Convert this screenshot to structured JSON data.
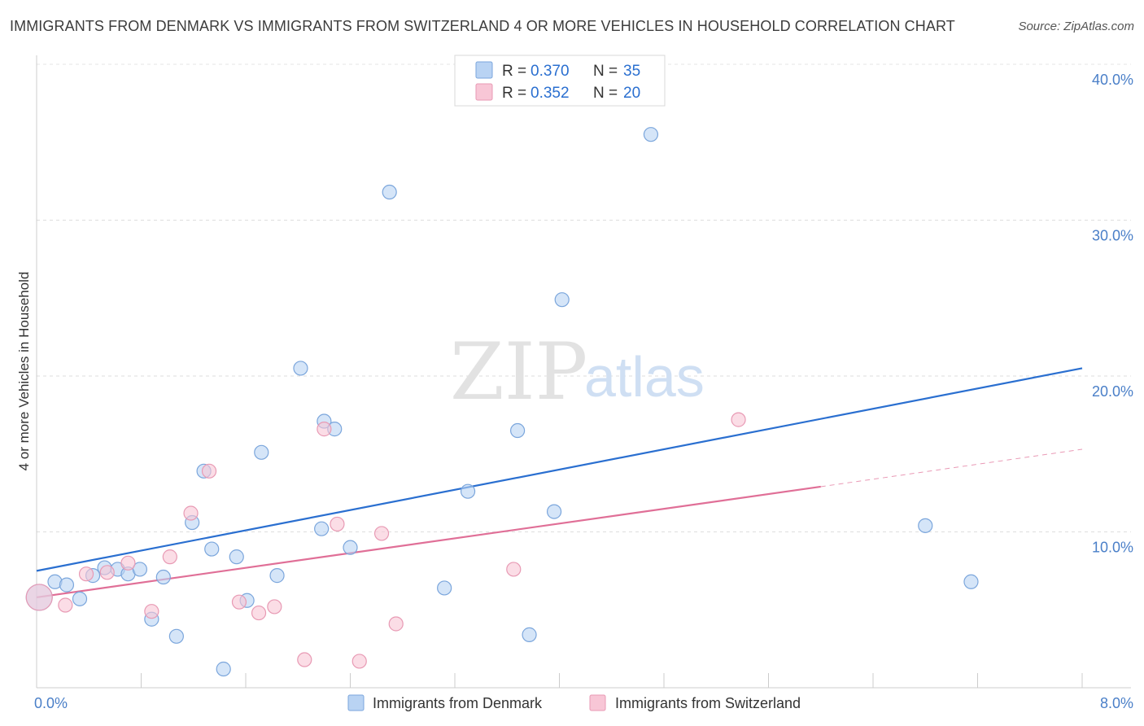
{
  "title": "IMMIGRANTS FROM DENMARK VS IMMIGRANTS FROM SWITZERLAND 4 OR MORE VEHICLES IN HOUSEHOLD CORRELATION CHART",
  "source": "Source: ZipAtlas.com",
  "watermark": {
    "zip": "ZIP",
    "atlas": "atlas"
  },
  "colors": {
    "denmark_fill": "#b9d3f3",
    "denmark_stroke": "#7ba6dc",
    "denmark_line": "#2a6fd0",
    "switzerland_fill": "#f8c6d6",
    "switzerland_stroke": "#e89ab4",
    "switzerland_line": "#e06f97",
    "accent_text": "#2a6fd0"
  },
  "legend": {
    "r_label": "R =",
    "n_label": "N =",
    "rows": [
      {
        "r": "0.370",
        "n": "35"
      },
      {
        "r": "0.352",
        "n": "20"
      }
    ]
  },
  "chart_data": {
    "type": "scatter",
    "ylabel": "4 or more Vehicles in Household",
    "xlim": [
      0,
      8
    ],
    "ylim": [
      0,
      40
    ],
    "x_tick_labels": [
      "0.0%",
      "8.0%"
    ],
    "y_tick_labels": [
      "10.0%",
      "20.0%",
      "30.0%",
      "40.0%"
    ],
    "grid": true,
    "legend_position": "top-center",
    "series": [
      {
        "name": "Immigrants from Denmark",
        "r": 0.37,
        "n": 35,
        "points": [
          [
            0.02,
            5.8
          ],
          [
            0.14,
            6.8
          ],
          [
            0.23,
            6.6
          ],
          [
            0.33,
            5.7
          ],
          [
            0.43,
            7.2
          ],
          [
            0.52,
            7.7
          ],
          [
            0.62,
            7.6
          ],
          [
            0.7,
            7.3
          ],
          [
            0.79,
            7.6
          ],
          [
            0.88,
            4.4
          ],
          [
            0.97,
            7.1
          ],
          [
            1.07,
            3.3
          ],
          [
            1.19,
            10.6
          ],
          [
            1.28,
            13.9
          ],
          [
            1.34,
            8.9
          ],
          [
            1.43,
            1.2
          ],
          [
            1.53,
            8.4
          ],
          [
            1.61,
            5.6
          ],
          [
            1.72,
            15.1
          ],
          [
            1.84,
            7.2
          ],
          [
            2.02,
            20.5
          ],
          [
            2.18,
            10.2
          ],
          [
            2.2,
            17.1
          ],
          [
            2.28,
            16.6
          ],
          [
            2.4,
            9.0
          ],
          [
            2.7,
            31.8
          ],
          [
            3.12,
            6.4
          ],
          [
            3.3,
            12.6
          ],
          [
            3.68,
            16.5
          ],
          [
            3.77,
            3.4
          ],
          [
            3.96,
            11.3
          ],
          [
            4.02,
            24.9
          ],
          [
            4.7,
            35.5
          ],
          [
            6.8,
            10.4
          ],
          [
            7.15,
            6.8
          ]
        ],
        "trend": [
          [
            0,
            7.5
          ],
          [
            8,
            20.5
          ]
        ]
      },
      {
        "name": "Immigrants from Switzerland",
        "r": 0.352,
        "n": 20,
        "points": [
          [
            0.02,
            5.8
          ],
          [
            0.22,
            5.3
          ],
          [
            0.38,
            7.3
          ],
          [
            0.54,
            7.4
          ],
          [
            0.7,
            8.0
          ],
          [
            0.88,
            4.9
          ],
          [
            1.02,
            8.4
          ],
          [
            1.18,
            11.2
          ],
          [
            1.32,
            13.9
          ],
          [
            1.55,
            5.5
          ],
          [
            1.7,
            4.8
          ],
          [
            1.82,
            5.2
          ],
          [
            2.05,
            1.8
          ],
          [
            2.2,
            16.6
          ],
          [
            2.3,
            10.5
          ],
          [
            2.47,
            1.7
          ],
          [
            2.64,
            9.9
          ],
          [
            2.75,
            4.1
          ],
          [
            3.65,
            7.6
          ],
          [
            5.37,
            17.2
          ]
        ],
        "trend": [
          [
            0,
            5.8
          ],
          [
            6.0,
            12.9
          ]
        ],
        "trend_extension": [
          [
            6.0,
            12.9
          ],
          [
            8,
            15.3
          ]
        ]
      }
    ]
  },
  "bottom_legend": [
    {
      "label": "Immigrants from Denmark"
    },
    {
      "label": "Immigrants from Switzerland"
    }
  ]
}
